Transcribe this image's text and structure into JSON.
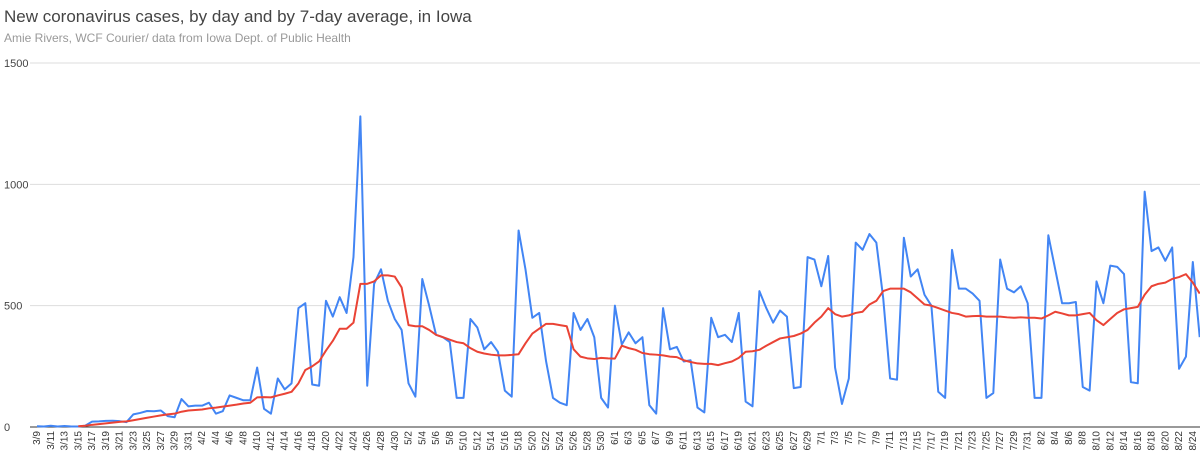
{
  "chart_data": {
    "type": "line",
    "title": "New coronavirus cases, by day and by 7-day average, in Iowa",
    "subtitle": "Amie Rivers, WCF Courier/ data from Iowa Dept. of Public Health",
    "categories": [
      "3/9",
      null,
      "3/11",
      null,
      "3/13",
      null,
      "3/15",
      null,
      "3/17",
      null,
      "3/19",
      null,
      "3/21",
      null,
      "3/23",
      null,
      "3/25",
      null,
      "3/27",
      null,
      "3/29",
      null,
      "3/31",
      null,
      "4/2",
      null,
      "4/4",
      null,
      "4/6",
      null,
      "4/8",
      null,
      "4/10",
      null,
      "4/12",
      null,
      "4/14",
      null,
      "4/16",
      null,
      "4/18",
      null,
      "4/20",
      null,
      "4/22",
      null,
      "4/24",
      null,
      "4/26",
      null,
      "4/28",
      null,
      "4/30",
      null,
      "5/2",
      null,
      "5/4",
      null,
      "5/6",
      null,
      "5/8",
      null,
      "5/10",
      null,
      "5/12",
      null,
      "5/14",
      null,
      "5/16",
      null,
      "5/18",
      null,
      "5/20",
      null,
      "5/22",
      null,
      "5/24",
      null,
      "5/26",
      null,
      "5/28",
      null,
      "5/30",
      null,
      "6/1",
      null,
      "6/3",
      null,
      "6/5",
      null,
      "6/7",
      null,
      "6/9",
      null,
      "6/11",
      null,
      "6/13",
      null,
      "6/15",
      null,
      "6/17",
      null,
      "6/19",
      null,
      "6/21",
      null,
      "6/23",
      null,
      "6/25",
      null,
      "6/27",
      null,
      "6/29",
      null,
      "7/1",
      null,
      "7/3",
      null,
      "7/5",
      null,
      "7/7",
      null,
      "7/9",
      null,
      "7/11",
      null,
      "7/13",
      null,
      "7/15",
      null,
      "7/17",
      null,
      "7/19",
      null,
      "7/21",
      null,
      "7/23",
      null,
      "7/25",
      null,
      "7/27",
      null,
      "7/29",
      null,
      "7/31",
      null,
      "8/2",
      null,
      "8/4",
      null,
      "8/6",
      null,
      "8/8",
      null,
      "8/10",
      null,
      "8/12",
      null,
      "8/14",
      null,
      "8/16",
      null,
      "8/18",
      null,
      "8/20",
      null,
      "8/22",
      null,
      "8/24",
      null
    ],
    "series": [
      {
        "color": "#4285f4",
        "values": [
          3,
          2,
          5,
          2,
          4,
          2,
          2,
          5,
          22,
          23,
          25,
          26,
          24,
          20,
          52,
          58,
          66,
          65,
          68,
          45,
          40,
          115,
          85,
          88,
          88,
          100,
          55,
          65,
          130,
          120,
          110,
          110,
          245,
          75,
          55,
          200,
          155,
          180,
          490,
          510,
          175,
          170,
          520,
          455,
          535,
          470,
          700,
          1280,
          170,
          590,
          650,
          520,
          445,
          400,
          180,
          125,
          610,
          500,
          380,
          370,
          350,
          120,
          120,
          445,
          410,
          320,
          350,
          310,
          150,
          125,
          810,
          650,
          450,
          470,
          270,
          120,
          100,
          90,
          470,
          400,
          445,
          370,
          120,
          80,
          500,
          340,
          390,
          345,
          370,
          90,
          55,
          490,
          320,
          330,
          270,
          275,
          80,
          60,
          450,
          370,
          380,
          350,
          470,
          105,
          85,
          560,
          490,
          430,
          480,
          455,
          160,
          165,
          700,
          690,
          580,
          705,
          245,
          95,
          200,
          760,
          730,
          795,
          760,
          530,
          200,
          195,
          780,
          620,
          650,
          545,
          500,
          145,
          120,
          730,
          570,
          570,
          550,
          520,
          120,
          140,
          690,
          570,
          555,
          580,
          510,
          120,
          120,
          790,
          650,
          510,
          510,
          515,
          165,
          150,
          600,
          510,
          665,
          660,
          630,
          185,
          180,
          970,
          725,
          740,
          685,
          740,
          240,
          290,
          680,
          370
        ]
      },
      {
        "color": "#ea4335",
        "values": [
          null,
          null,
          null,
          null,
          null,
          null,
          3,
          5,
          9,
          12,
          15,
          18,
          21,
          23,
          28,
          33,
          38,
          43,
          48,
          52,
          55,
          63,
          68,
          70,
          72,
          77,
          80,
          84,
          88,
          92,
          97,
          100,
          122,
          123,
          122,
          130,
          137,
          145,
          180,
          235,
          250,
          270,
          315,
          355,
          405,
          405,
          430,
          590,
          590,
          600,
          625,
          625,
          620,
          575,
          420,
          415,
          415,
          400,
          380,
          370,
          360,
          350,
          345,
          325,
          310,
          303,
          298,
          295,
          295,
          297,
          300,
          345,
          385,
          405,
          425,
          425,
          420,
          415,
          320,
          290,
          283,
          280,
          285,
          283,
          282,
          335,
          325,
          318,
          305,
          300,
          298,
          295,
          290,
          288,
          275,
          268,
          262,
          260,
          260,
          255,
          263,
          270,
          285,
          310,
          312,
          318,
          335,
          350,
          365,
          370,
          375,
          385,
          400,
          430,
          455,
          490,
          465,
          455,
          460,
          470,
          475,
          505,
          520,
          560,
          570,
          570,
          570,
          555,
          530,
          505,
          500,
          490,
          480,
          470,
          465,
          455,
          457,
          458,
          455,
          455,
          455,
          452,
          450,
          452,
          450,
          450,
          447,
          460,
          475,
          468,
          460,
          460,
          465,
          470,
          440,
          420,
          445,
          470,
          485,
          490,
          495,
          545,
          580,
          590,
          595,
          610,
          618,
          630,
          595,
          550
        ]
      }
    ],
    "ylim": [
      0,
      1500
    ],
    "yticks": [
      0,
      500,
      1000,
      1500
    ],
    "grid": true
  }
}
